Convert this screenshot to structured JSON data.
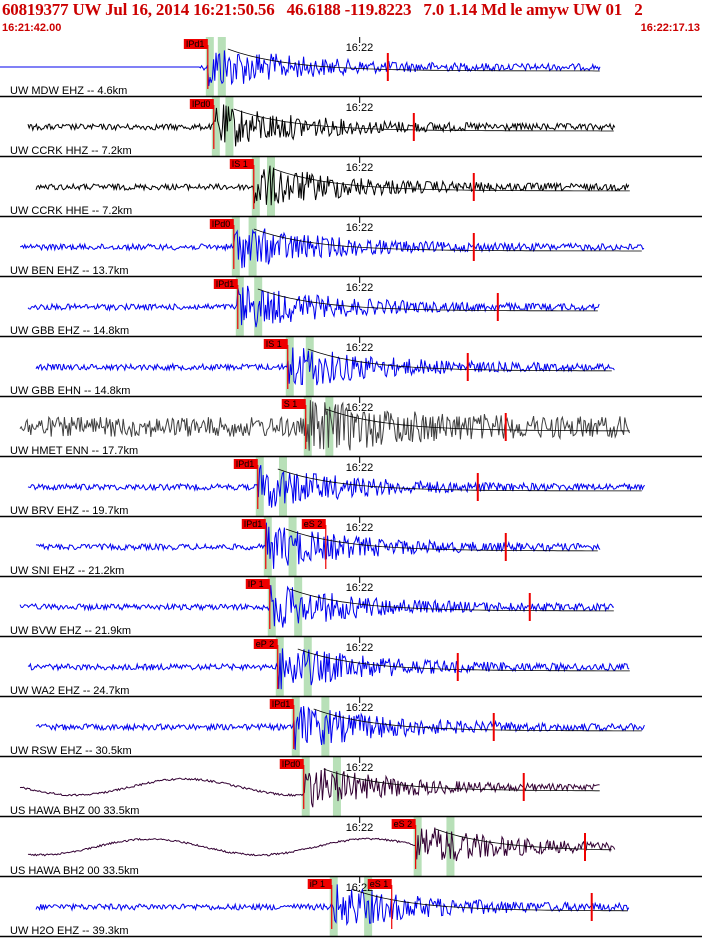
{
  "header": {
    "title": "60819377 UW Jul 16, 2014 16:21:50.56   46.6188 -119.8223   7.0 1.14 Md le amyw UW 01   2",
    "start_time": "16:21:42.00",
    "end_time": "16:22:17.13"
  },
  "colors": {
    "title": "#cc0000",
    "pick": "#ee0000",
    "band": "#b8e0b8",
    "blue": "#0000ee",
    "black": "#000000",
    "gray": "#404040",
    "purple": "#330033"
  },
  "chart_data": {
    "type": "seismogram",
    "x_axis": {
      "start": "16:21:42.00",
      "end": "16:22:17.13",
      "tick_label": "16:22"
    },
    "traces": [
      {
        "label": "UW MDW EHZ -- 4.6km",
        "pick": "IPd1",
        "color": "blue",
        "pick_time_s": 10.4
      },
      {
        "label": "UW CCRK HHZ -- 7.2km",
        "pick": "IPd0",
        "color": "black",
        "pick_time_s": 10.7
      },
      {
        "label": "UW CCRK HHE -- 7.2km",
        "pick": "IS 1",
        "color": "black",
        "pick_time_s": 12.7
      },
      {
        "label": "UW BEN EHZ -- 13.7km",
        "pick": "IPd0",
        "color": "blue",
        "pick_time_s": 11.7
      },
      {
        "label": "UW GBB EHZ -- 14.8km",
        "pick": "IPd1",
        "color": "blue",
        "pick_time_s": 11.9
      },
      {
        "label": "UW GBB EHN -- 14.8km",
        "pick": "IS 1",
        "color": "blue",
        "pick_time_s": 14.4
      },
      {
        "label": "UW HMET ENN -- 17.7km",
        "pick": "S 1",
        "color": "gray",
        "pick_time_s": 15.3
      },
      {
        "label": "UW BRV EHZ -- 19.7km",
        "pick": "IPd1",
        "color": "blue",
        "pick_time_s": 12.9
      },
      {
        "label": "UW SNI EHZ -- 21.2km",
        "pick": "IPd1",
        "color": "blue",
        "pick_time_s": 13.3
      },
      {
        "label": "UW BVW EHZ -- 21.9km",
        "pick": "IP 1",
        "color": "blue",
        "pick_time_s": 13.5
      },
      {
        "label": "UW WA2 EHZ -- 24.7km",
        "pick": "eP 2",
        "color": "blue",
        "pick_time_s": 13.9
      },
      {
        "label": "UW RSW EHZ -- 30.5km",
        "pick": "IPd1",
        "color": "blue",
        "pick_time_s": 14.7
      },
      {
        "label": "US HAWA BHZ 00 33.5km",
        "pick": "IPd0",
        "color": "purple",
        "pick_time_s": 15.2
      },
      {
        "label": "US HAWA BH2 00 33.5km",
        "pick": "eS 2",
        "color": "purple",
        "pick_time_s": 20.8
      },
      {
        "label": "UW H2O EHZ -- 39.3km",
        "pick": "iP 1",
        "color": "blue",
        "pick_time_s": 16.6
      }
    ],
    "extra_picks": [
      {
        "trace": 9,
        "pick": "eS 2"
      },
      {
        "trace": 15,
        "pick": "eS 1"
      }
    ]
  }
}
